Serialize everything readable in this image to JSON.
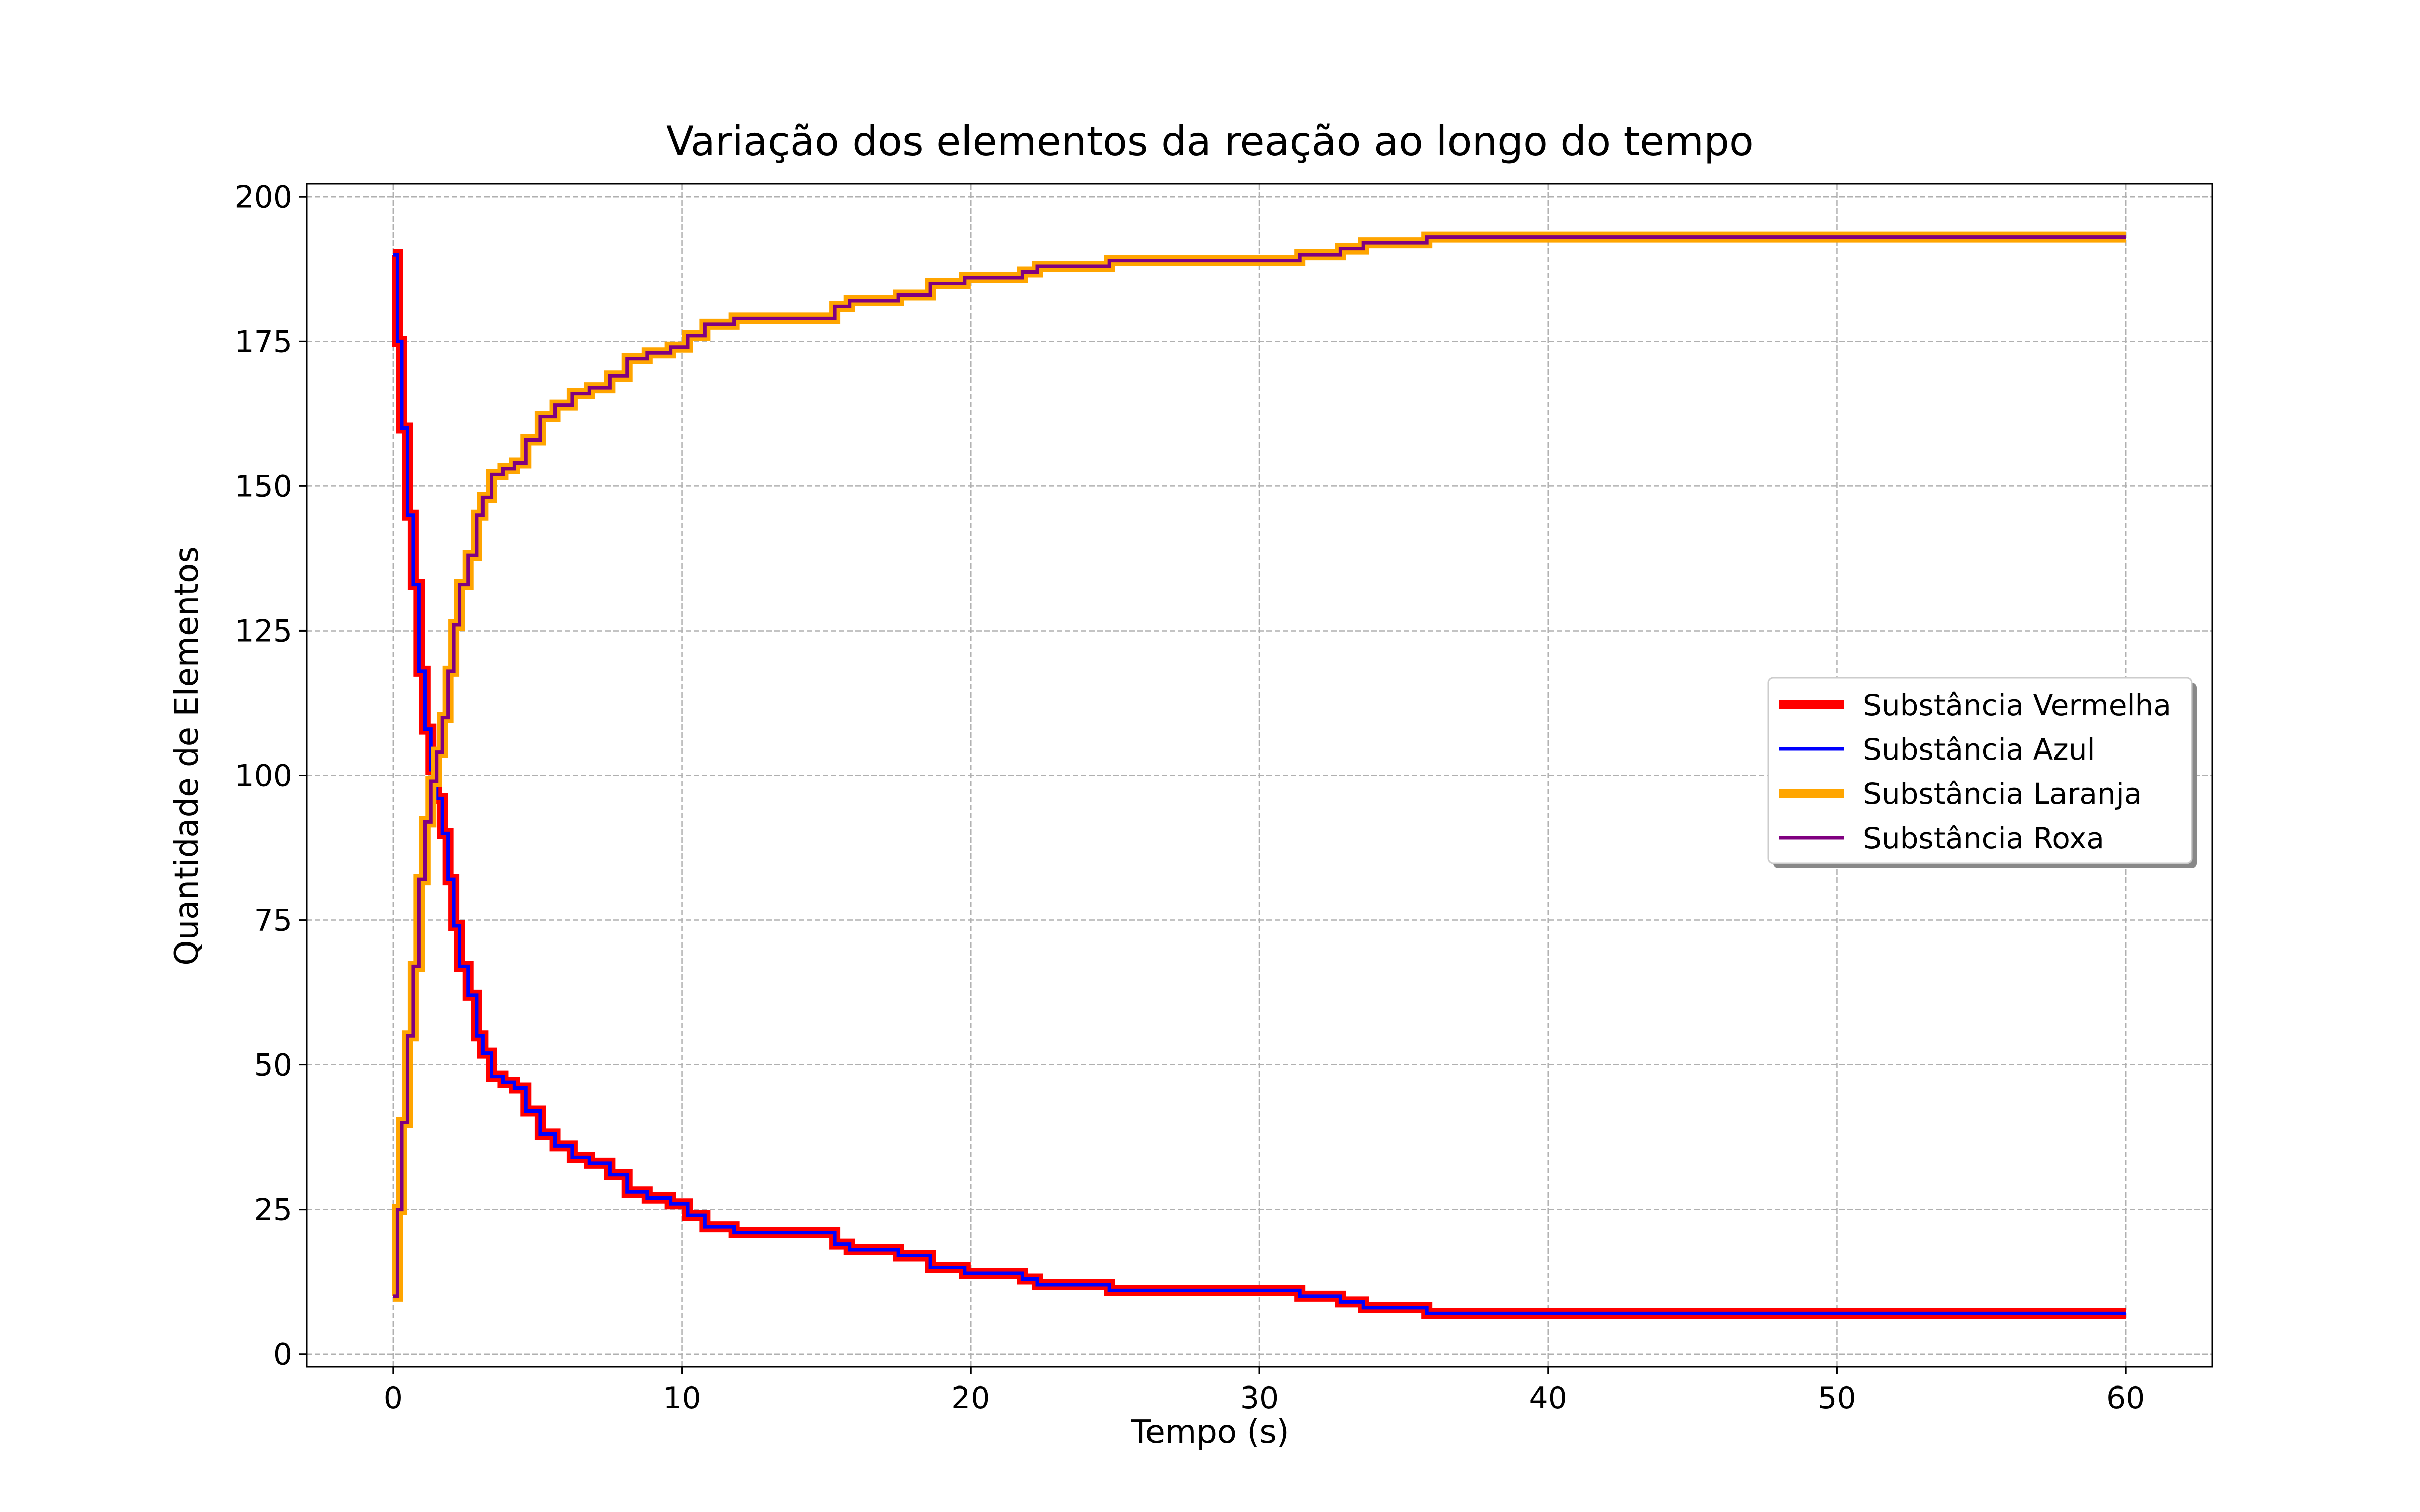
{
  "chart_data": {
    "type": "line",
    "title": "Variação dos elementos da reação ao longo do tempo",
    "xlabel": "Tempo (s)",
    "ylabel": "Quantidade de Elementos",
    "xlim": [
      -3,
      63
    ],
    "ylim": [
      -2.2,
      202.2
    ],
    "xticks": [
      0,
      10,
      20,
      30,
      40,
      50,
      60
    ],
    "yticks": [
      0,
      25,
      50,
      75,
      100,
      125,
      150,
      175,
      200
    ],
    "grid": true,
    "legend_position": "center-right",
    "series": [
      {
        "name": "Substância Vermelha",
        "color": "#ff0000",
        "points": [
          [
            0,
            190
          ],
          [
            0.15,
            175
          ],
          [
            0.3,
            160
          ],
          [
            0.5,
            145
          ],
          [
            0.7,
            133
          ],
          [
            0.9,
            118
          ],
          [
            1.1,
            108
          ],
          [
            1.3,
            101
          ],
          [
            1.5,
            96
          ],
          [
            1.7,
            90
          ],
          [
            1.9,
            82
          ],
          [
            2.1,
            74
          ],
          [
            2.3,
            67
          ],
          [
            2.6,
            62
          ],
          [
            2.9,
            55
          ],
          [
            3.1,
            52
          ],
          [
            3.4,
            48
          ],
          [
            3.8,
            47
          ],
          [
            4.2,
            46
          ],
          [
            4.6,
            42
          ],
          [
            5.1,
            38
          ],
          [
            5.6,
            36
          ],
          [
            6.2,
            34
          ],
          [
            6.8,
            33
          ],
          [
            7.5,
            31
          ],
          [
            8.1,
            28
          ],
          [
            8.8,
            27
          ],
          [
            9.6,
            26
          ],
          [
            10.2,
            24
          ],
          [
            10.8,
            22
          ],
          [
            11.8,
            21
          ],
          [
            14.6,
            21
          ],
          [
            15.3,
            19
          ],
          [
            15.8,
            18
          ],
          [
            17.5,
            17
          ],
          [
            18.6,
            15
          ],
          [
            19.8,
            14
          ],
          [
            21.8,
            13
          ],
          [
            22.3,
            12
          ],
          [
            24.8,
            11
          ],
          [
            30.9,
            11
          ],
          [
            31.4,
            10
          ],
          [
            32.8,
            9
          ],
          [
            33.6,
            8
          ],
          [
            35.8,
            7
          ],
          [
            60,
            7
          ]
        ]
      },
      {
        "name": "Substância Azul",
        "color": "#0000ff",
        "points": [
          [
            0,
            190
          ],
          [
            0.15,
            175
          ],
          [
            0.3,
            160
          ],
          [
            0.5,
            145
          ],
          [
            0.7,
            133
          ],
          [
            0.9,
            118
          ],
          [
            1.1,
            108
          ],
          [
            1.3,
            101
          ],
          [
            1.5,
            96
          ],
          [
            1.7,
            90
          ],
          [
            1.9,
            82
          ],
          [
            2.1,
            74
          ],
          [
            2.3,
            67
          ],
          [
            2.6,
            62
          ],
          [
            2.9,
            55
          ],
          [
            3.1,
            52
          ],
          [
            3.4,
            48
          ],
          [
            3.8,
            47
          ],
          [
            4.2,
            46
          ],
          [
            4.6,
            42
          ],
          [
            5.1,
            38
          ],
          [
            5.6,
            36
          ],
          [
            6.2,
            34
          ],
          [
            6.8,
            33
          ],
          [
            7.5,
            31
          ],
          [
            8.1,
            28
          ],
          [
            8.8,
            27
          ],
          [
            9.6,
            26
          ],
          [
            10.2,
            24
          ],
          [
            10.8,
            22
          ],
          [
            11.8,
            21
          ],
          [
            14.6,
            21
          ],
          [
            15.3,
            19
          ],
          [
            15.8,
            18
          ],
          [
            17.5,
            17
          ],
          [
            18.6,
            15
          ],
          [
            19.8,
            14
          ],
          [
            21.8,
            13
          ],
          [
            22.3,
            12
          ],
          [
            24.8,
            11
          ],
          [
            30.9,
            11
          ],
          [
            31.4,
            10
          ],
          [
            32.8,
            9
          ],
          [
            33.6,
            8
          ],
          [
            35.8,
            7
          ],
          [
            60,
            7
          ]
        ]
      },
      {
        "name": "Substância Laranja",
        "color": "#ffa500",
        "points": [
          [
            0,
            10
          ],
          [
            0.15,
            25
          ],
          [
            0.3,
            40
          ],
          [
            0.5,
            55
          ],
          [
            0.7,
            67
          ],
          [
            0.9,
            82
          ],
          [
            1.1,
            92
          ],
          [
            1.3,
            99
          ],
          [
            1.5,
            104
          ],
          [
            1.7,
            110
          ],
          [
            1.9,
            118
          ],
          [
            2.1,
            126
          ],
          [
            2.3,
            133
          ],
          [
            2.6,
            138
          ],
          [
            2.9,
            145
          ],
          [
            3.1,
            148
          ],
          [
            3.4,
            152
          ],
          [
            3.8,
            153
          ],
          [
            4.2,
            154
          ],
          [
            4.6,
            158
          ],
          [
            5.1,
            162
          ],
          [
            5.6,
            164
          ],
          [
            6.2,
            166
          ],
          [
            6.8,
            167
          ],
          [
            7.5,
            169
          ],
          [
            8.1,
            172
          ],
          [
            8.8,
            173
          ],
          [
            9.6,
            174
          ],
          [
            10.2,
            176
          ],
          [
            10.8,
            178
          ],
          [
            11.8,
            179
          ],
          [
            14.6,
            179
          ],
          [
            15.3,
            181
          ],
          [
            15.8,
            182
          ],
          [
            17.5,
            183
          ],
          [
            18.6,
            185
          ],
          [
            19.8,
            186
          ],
          [
            21.8,
            187
          ],
          [
            22.3,
            188
          ],
          [
            24.8,
            189
          ],
          [
            30.9,
            189
          ],
          [
            31.4,
            190
          ],
          [
            32.8,
            191
          ],
          [
            33.6,
            192
          ],
          [
            35.8,
            193
          ],
          [
            60,
            193
          ]
        ]
      },
      {
        "name": "Substância Roxa",
        "color": "#800080",
        "points": [
          [
            0,
            10
          ],
          [
            0.15,
            25
          ],
          [
            0.3,
            40
          ],
          [
            0.5,
            55
          ],
          [
            0.7,
            67
          ],
          [
            0.9,
            82
          ],
          [
            1.1,
            92
          ],
          [
            1.3,
            99
          ],
          [
            1.5,
            104
          ],
          [
            1.7,
            110
          ],
          [
            1.9,
            118
          ],
          [
            2.1,
            126
          ],
          [
            2.3,
            133
          ],
          [
            2.6,
            138
          ],
          [
            2.9,
            145
          ],
          [
            3.1,
            148
          ],
          [
            3.4,
            152
          ],
          [
            3.8,
            153
          ],
          [
            4.2,
            154
          ],
          [
            4.6,
            158
          ],
          [
            5.1,
            162
          ],
          [
            5.6,
            164
          ],
          [
            6.2,
            166
          ],
          [
            6.8,
            167
          ],
          [
            7.5,
            169
          ],
          [
            8.1,
            172
          ],
          [
            8.8,
            173
          ],
          [
            9.6,
            174
          ],
          [
            10.2,
            176
          ],
          [
            10.8,
            178
          ],
          [
            11.8,
            179
          ],
          [
            14.6,
            179
          ],
          [
            15.3,
            181
          ],
          [
            15.8,
            182
          ],
          [
            17.5,
            183
          ],
          [
            18.6,
            185
          ],
          [
            19.8,
            186
          ],
          [
            21.8,
            187
          ],
          [
            22.3,
            188
          ],
          [
            24.8,
            189
          ],
          [
            30.9,
            189
          ],
          [
            31.4,
            190
          ],
          [
            32.8,
            191
          ],
          [
            33.6,
            192
          ],
          [
            35.8,
            193
          ],
          [
            60,
            193
          ]
        ]
      }
    ]
  }
}
